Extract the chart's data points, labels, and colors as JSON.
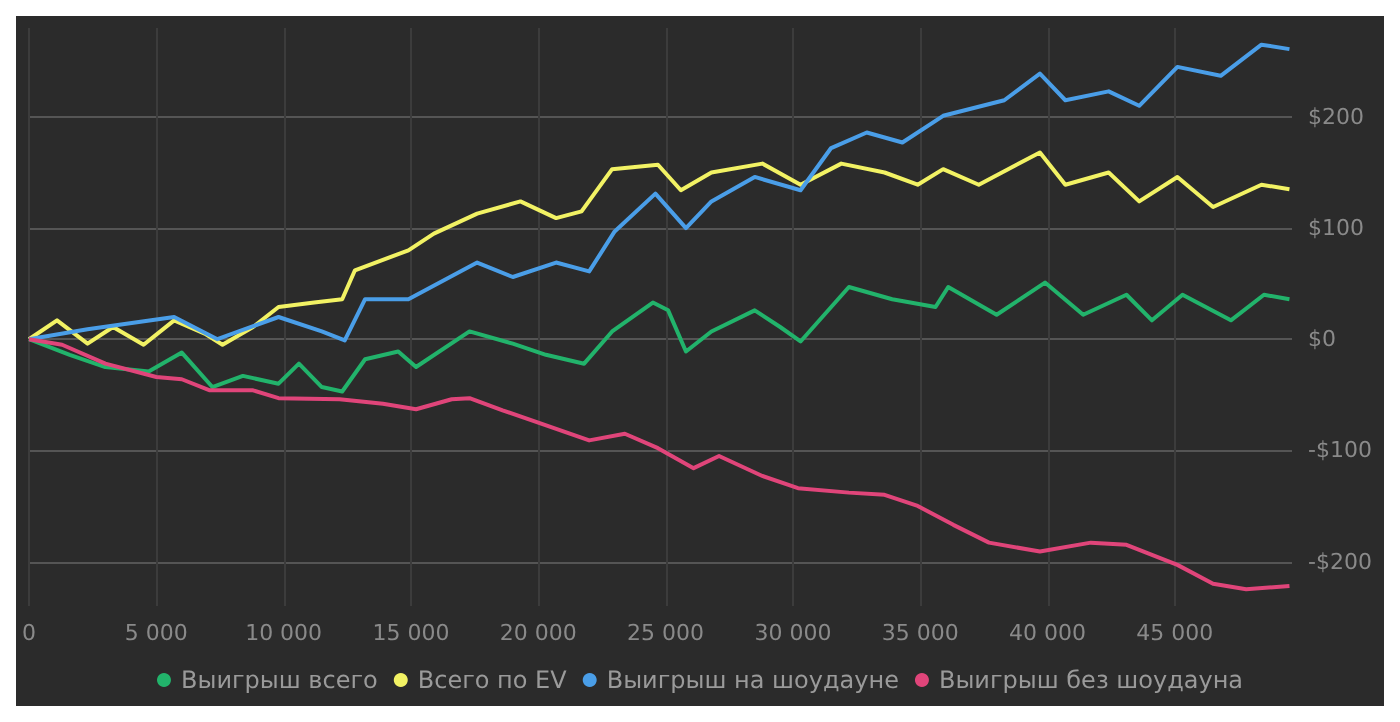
{
  "chart_data": {
    "type": "line",
    "xlim": [
      0,
      49600
    ],
    "ylim": [
      -240,
      280
    ],
    "xticks": [
      0,
      {
        "value": 5000,
        "label": "5 000"
      },
      {
        "value": 10000,
        "label": "10 000"
      },
      {
        "value": 15000,
        "label": "15 000"
      },
      {
        "value": 20000,
        "label": "20 000"
      },
      {
        "value": 25000,
        "label": "25 000"
      },
      {
        "value": 30000,
        "label": "30 000"
      },
      {
        "value": 35000,
        "label": "35 000"
      },
      {
        "value": 40000,
        "label": "40 000"
      },
      {
        "value": 45000,
        "label": "45 000"
      }
    ],
    "yticks": [
      {
        "value": -200,
        "label": "-$200"
      },
      {
        "value": -100,
        "label": "-$100"
      },
      {
        "value": 0,
        "label": "$0"
      },
      {
        "value": 100,
        "label": "$100"
      },
      {
        "value": 200,
        "label": "$200"
      }
    ],
    "grid": true,
    "legend": "bottom",
    "line_style": "solid",
    "series": [
      {
        "name": "Выигрыш всего",
        "color": "#22b36b",
        "x": [
          0,
          1600,
          3000,
          4700,
          6000,
          7200,
          8400,
          9800,
          10600,
          11500,
          12300,
          13200,
          14500,
          15200,
          17300,
          19000,
          20300,
          21800,
          22900,
          24500,
          25100,
          25800,
          26800,
          28500,
          29500,
          30300,
          32200,
          33900,
          35600,
          36100,
          38000,
          39900,
          41400,
          43100,
          44100,
          45300,
          47200,
          48500,
          49500
        ],
        "values": [
          0,
          -14,
          -25,
          -29,
          -12,
          -43,
          -33,
          -40,
          -22,
          -43,
          -47,
          -18,
          -11,
          -25,
          7,
          -4,
          -14,
          -22,
          7,
          33,
          26,
          -11,
          7,
          26,
          11,
          -2,
          47,
          36,
          29,
          47,
          22,
          51,
          22,
          40,
          17,
          40,
          17,
          40,
          36
        ]
      },
      {
        "name": "Всего по EV",
        "color": "#f2f264",
        "x": [
          0,
          1100,
          2300,
          3300,
          4500,
          5700,
          6900,
          7600,
          8800,
          9800,
          11200,
          12300,
          12800,
          14900,
          15900,
          17600,
          19300,
          20700,
          21700,
          22900,
          24700,
          25600,
          26800,
          28800,
          30300,
          31900,
          33600,
          34900,
          35900,
          37300,
          39700,
          40700,
          42400,
          43600,
          45100,
          46500,
          48400,
          49500
        ],
        "values": [
          0,
          17,
          -4,
          11,
          -5,
          17,
          5,
          -5,
          11,
          29,
          33,
          36,
          62,
          80,
          95,
          113,
          124,
          109,
          115,
          153,
          157,
          134,
          150,
          158,
          139,
          158,
          150,
          139,
          153,
          139,
          168,
          139,
          150,
          124,
          146,
          119,
          139,
          135
        ]
      },
      {
        "name": "Выигрыш на шоудауне",
        "color": "#4a9ee8",
        "x": [
          0,
          2300,
          5700,
          7400,
          9800,
          11500,
          12400,
          13200,
          14900,
          17600,
          19000,
          20700,
          22000,
          23000,
          24600,
          25800,
          26800,
          28500,
          30300,
          31500,
          32900,
          34300,
          35900,
          38300,
          39700,
          40700,
          42400,
          43600,
          45100,
          46800,
          48400,
          49500
        ],
        "values": [
          0,
          9,
          20,
          0,
          20,
          7,
          -1,
          36,
          36,
          69,
          56,
          69,
          61,
          97,
          131,
          100,
          124,
          146,
          134,
          172,
          186,
          177,
          201,
          215,
          239,
          215,
          223,
          210,
          245,
          237,
          265,
          261
        ]
      },
      {
        "name": "Выигрыш без шоудауна",
        "color": "#e0457a",
        "x": [
          0,
          1300,
          3000,
          5000,
          6000,
          7100,
          8800,
          9800,
          12200,
          13900,
          15200,
          16600,
          17300,
          18600,
          20000,
          22000,
          23400,
          24700,
          26100,
          27100,
          28800,
          30200,
          32200,
          33600,
          34900,
          36300,
          37700,
          39700,
          41700,
          43100,
          45100,
          46500,
          47800,
          49500
        ],
        "values": [
          0,
          -5,
          -22,
          -34,
          -36,
          -46,
          -46,
          -53,
          -54,
          -58,
          -63,
          -54,
          -53,
          -64,
          -75,
          -91,
          -85,
          -98,
          -116,
          -105,
          -123,
          -134,
          -138,
          -140,
          -150,
          -167,
          -183,
          -191,
          -183,
          -185,
          -203,
          -220,
          -225,
          -222
        ]
      }
    ]
  }
}
